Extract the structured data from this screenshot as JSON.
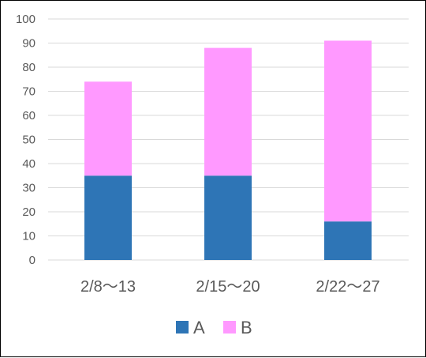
{
  "chart_data": {
    "type": "bar",
    "stacked": true,
    "categories": [
      "2/8～13",
      "2/15～20",
      "2/22～27"
    ],
    "series": [
      {
        "name": "A",
        "values": [
          35,
          35,
          16
        ],
        "color": "#2E75B6"
      },
      {
        "name": "B",
        "values": [
          39,
          53,
          75
        ],
        "color": "#FF99FF"
      }
    ],
    "ylim": [
      0,
      100
    ],
    "yticks": [
      0,
      10,
      20,
      30,
      40,
      50,
      60,
      70,
      80,
      90,
      100
    ],
    "grid": true,
    "legend_position": "bottom",
    "gridline_color": "#D9D9D9"
  }
}
